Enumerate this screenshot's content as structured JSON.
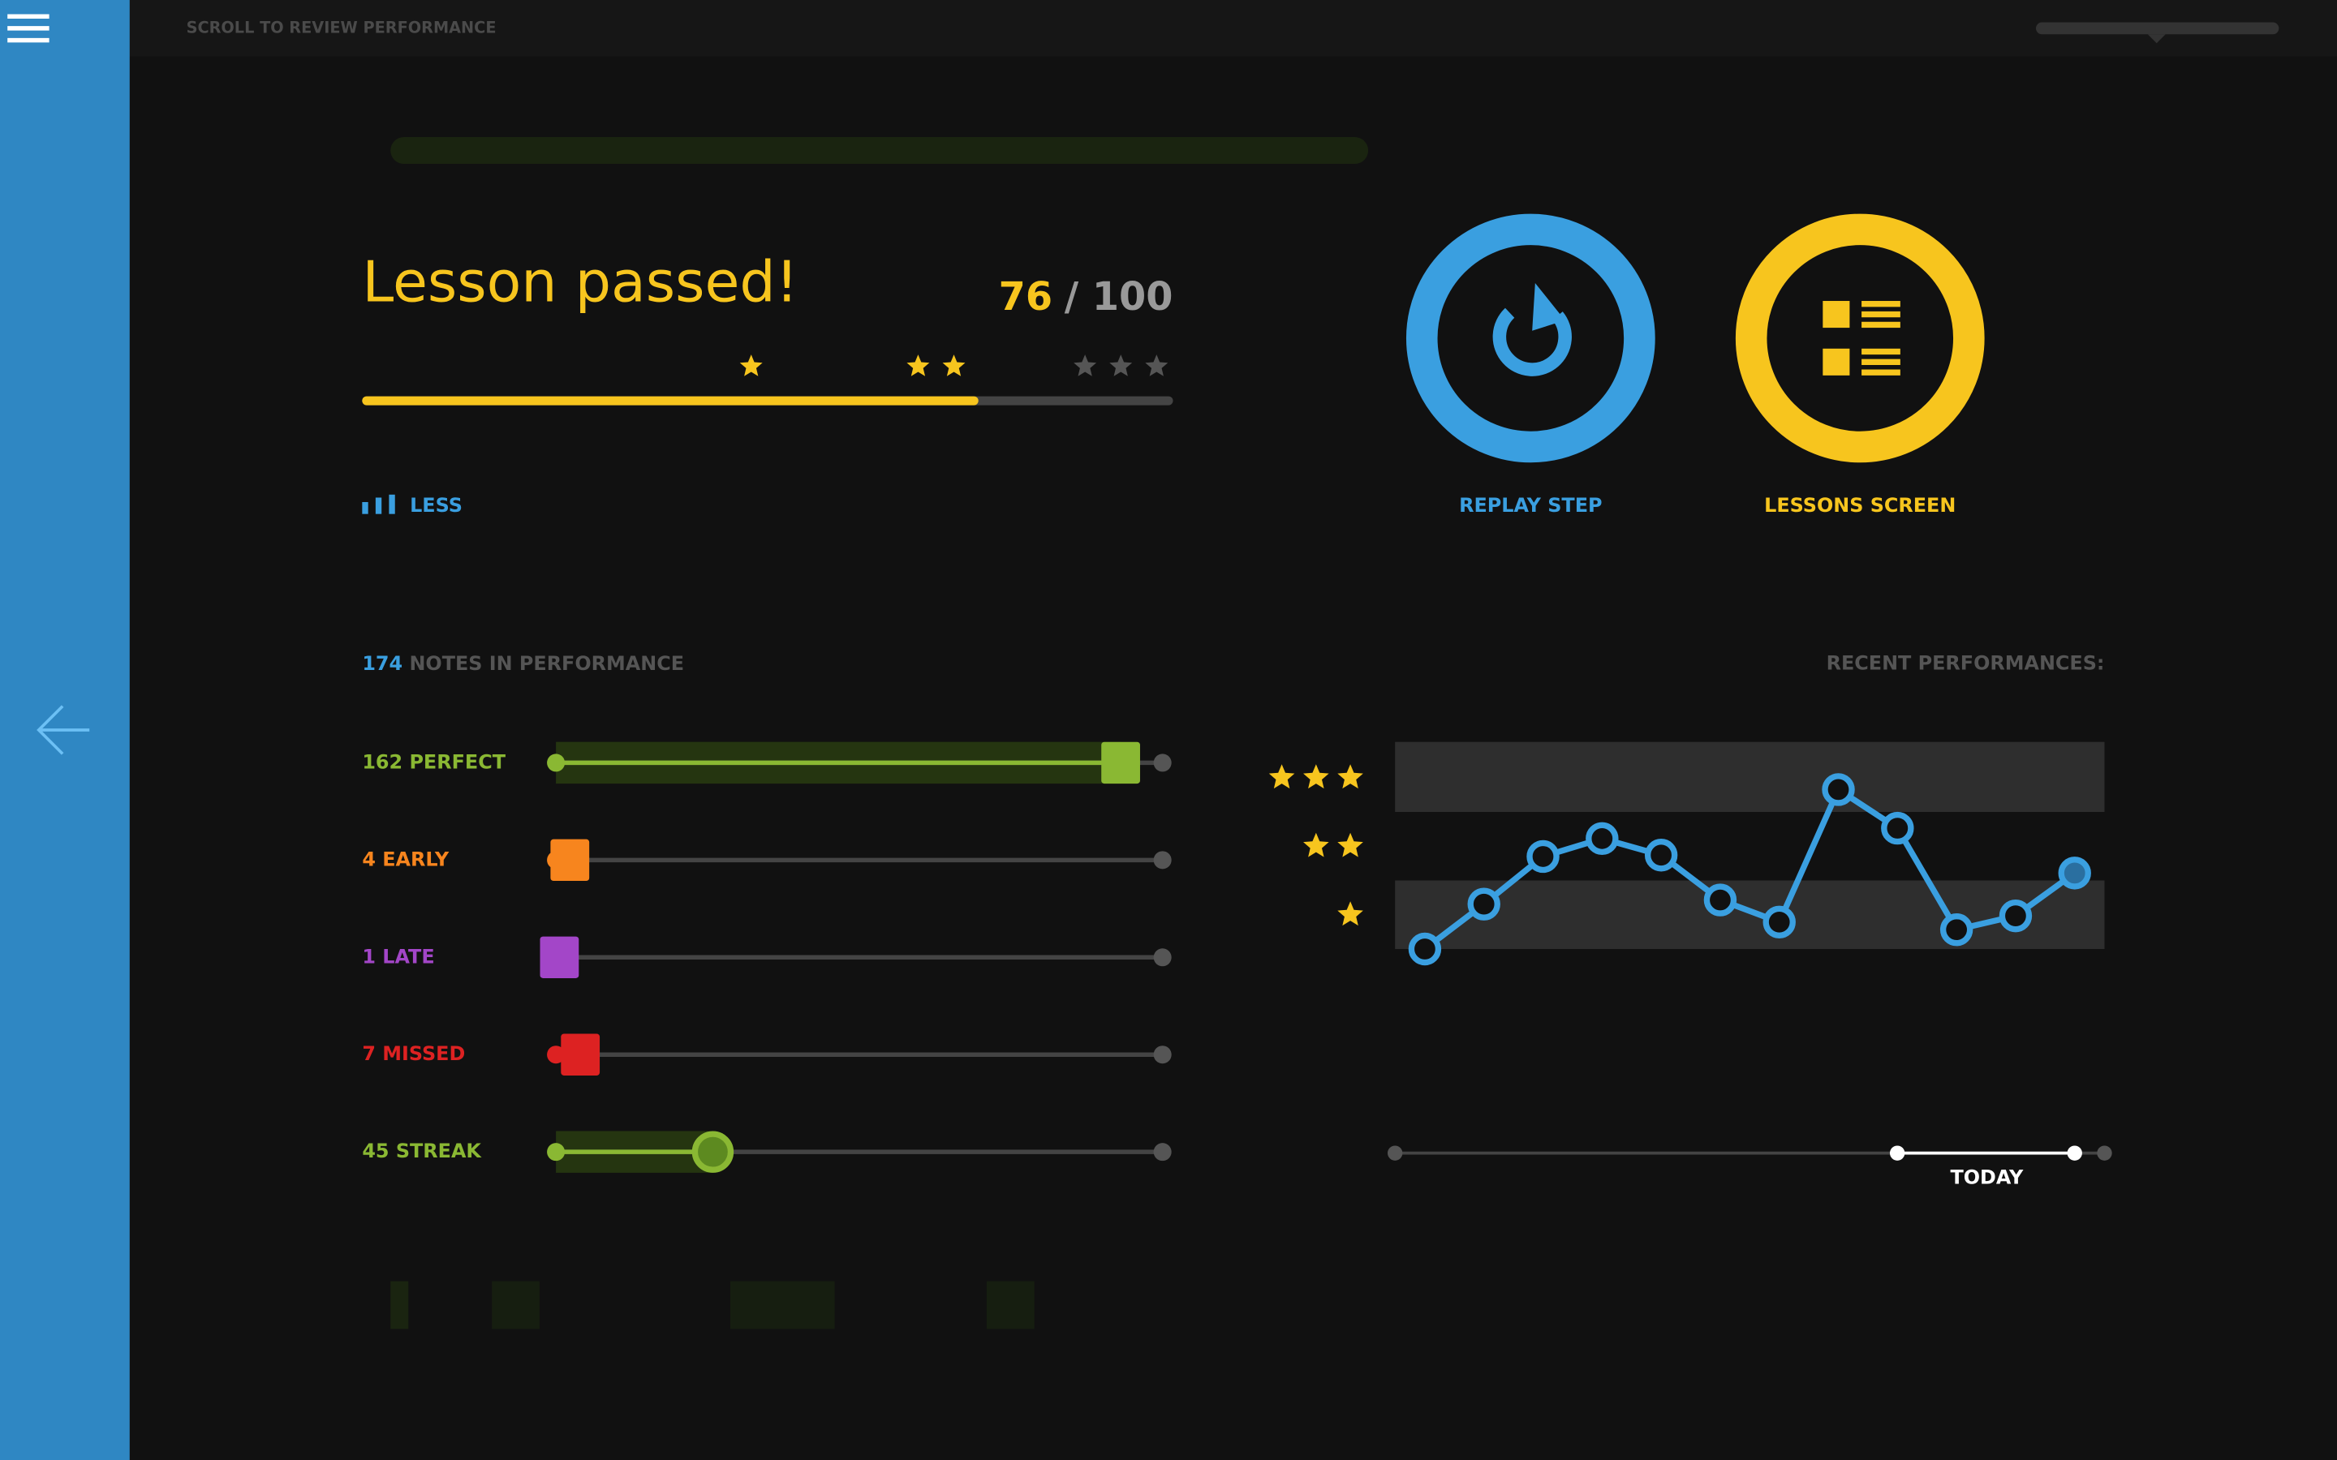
{
  "top_bar": {
    "hint": "SCROLL TO REVIEW PERFORMANCE"
  },
  "result": {
    "title": "Lesson passed!",
    "score": 76,
    "max": 100,
    "max_label": "/ 100"
  },
  "toggle": {
    "label": "LESS"
  },
  "buttons": [
    {
      "label": "REPLAY STEP",
      "color": "#3a9fe0"
    },
    {
      "label": "LESSONS SCREEN",
      "color": "#f7c51e"
    }
  ],
  "notes": {
    "count": 174,
    "label": "NOTES IN PERFORMANCE"
  },
  "stats": [
    {
      "count": 162,
      "label": "PERFECT",
      "color": "#8ab833",
      "handle": "square",
      "fill": true
    },
    {
      "count": 4,
      "label": "EARLY",
      "color": "#f7851e",
      "handle": "square",
      "fill": false
    },
    {
      "count": 1,
      "label": "LATE",
      "color": "#a346c8",
      "handle": "square",
      "fill": false
    },
    {
      "count": 7,
      "label": "MISSED",
      "color": "#dd2222",
      "handle": "square",
      "fill": false
    },
    {
      "count": 45,
      "label": "STREAK",
      "color": "#8ab833",
      "handle": "circle",
      "fill": true
    }
  ],
  "recent": {
    "title": "RECENT PERFORMANCES:",
    "values": [
      0,
      0.65,
      1.34,
      1.6,
      1.36,
      0.71,
      0.39,
      2.31,
      1.75,
      0.28,
      0.48,
      1.1
    ],
    "ylim": [
      0,
      3
    ],
    "color": "#3a9fe0",
    "today_label": "TODAY"
  }
}
